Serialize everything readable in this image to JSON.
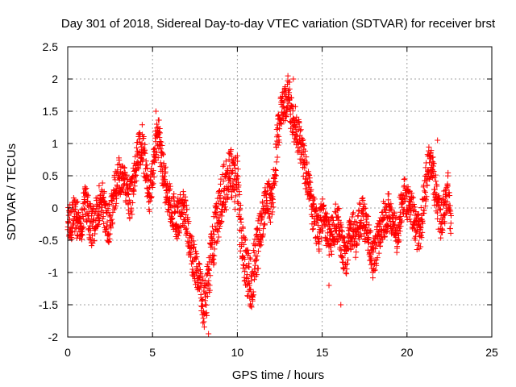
{
  "chart_data": {
    "type": "scatter",
    "title": "Day 301 of 2018, Sidereal Day-to-day VTEC variation (SDTVAR) for receiver brst",
    "xlabel": "GPS time / hours",
    "ylabel": "SDTVAR / TECUs",
    "xlim": [
      0,
      25
    ],
    "ylim": [
      -2,
      2.5
    ],
    "x_ticks": [
      0,
      5,
      10,
      15,
      20,
      25
    ],
    "x_tick_labels": [
      "0",
      "5",
      "10",
      "15",
      "20",
      "25"
    ],
    "y_ticks": [
      -2,
      -1.5,
      -1,
      -0.5,
      0,
      0.5,
      1,
      1.5,
      2,
      2.5
    ],
    "y_tick_labels": [
      "-2",
      "-1.5",
      "-1",
      "-0.5",
      "0",
      "0.5",
      "1",
      "1.5",
      "2",
      "2.5"
    ],
    "grid": true,
    "marker": "+",
    "marker_color": "#ff0000",
    "sample_interval_hours": 0.01,
    "series": [
      {
        "name": "SDTVAR",
        "trend": {
          "x": [
            0.0,
            0.2,
            0.4,
            0.6,
            0.8,
            1.0,
            1.2,
            1.4,
            1.6,
            1.8,
            2.0,
            2.2,
            2.4,
            2.6,
            2.8,
            3.0,
            3.2,
            3.4,
            3.6,
            3.8,
            4.0,
            4.2,
            4.4,
            4.6,
            4.8,
            5.0,
            5.2,
            5.4,
            5.6,
            5.8,
            6.0,
            6.2,
            6.4,
            6.6,
            6.8,
            7.0,
            7.2,
            7.4,
            7.6,
            7.8,
            8.0,
            8.2,
            8.4,
            8.6,
            8.8,
            9.0,
            9.2,
            9.4,
            9.6,
            9.8,
            10.0,
            10.2,
            10.4,
            10.6,
            10.8,
            11.0,
            11.2,
            11.4,
            11.6,
            11.8,
            12.0,
            12.2,
            12.4,
            12.6,
            12.8,
            13.0,
            13.2,
            13.4,
            13.6,
            13.8,
            14.0,
            14.2,
            14.4,
            14.6,
            14.8,
            15.0,
            15.2,
            15.4,
            15.6,
            15.8,
            16.0,
            16.2,
            16.4,
            16.6,
            16.8,
            17.0,
            17.2,
            17.4,
            17.6,
            17.8,
            18.0,
            18.2,
            18.4,
            18.6,
            18.8,
            19.0,
            19.2,
            19.4,
            19.6,
            19.8,
            20.0,
            20.2,
            20.4,
            20.6,
            20.8,
            21.0,
            21.2,
            21.4,
            21.6,
            21.8,
            22.0,
            22.2,
            22.4,
            22.6
          ],
          "y": [
            -0.3,
            -0.2,
            -0.1,
            -0.2,
            -0.3,
            0.1,
            -0.1,
            -0.3,
            -0.2,
            0.0,
            0.2,
            -0.1,
            -0.3,
            0.0,
            0.3,
            0.5,
            0.5,
            0.4,
            0.1,
            0.2,
            0.6,
            0.9,
            1.0,
            0.6,
            0.2,
            0.5,
            1.0,
            1.1,
            0.6,
            0.3,
            0.1,
            0.0,
            -0.2,
            -0.1,
            0.0,
            -0.2,
            -0.6,
            -0.8,
            -1.0,
            -1.1,
            -1.5,
            -1.3,
            -0.9,
            -0.5,
            -0.2,
            0.1,
            0.3,
            0.4,
            0.6,
            0.3,
            0.5,
            -0.4,
            -0.8,
            -1.0,
            -1.2,
            -0.9,
            -0.6,
            -0.3,
            0.0,
            0.2,
            0.0,
            0.5,
            1.2,
            1.5,
            1.6,
            1.8,
            1.4,
            1.3,
            1.1,
            0.9,
            0.6,
            0.3,
            0.0,
            -0.2,
            -0.4,
            -0.1,
            -0.3,
            -0.5,
            -0.4,
            -0.2,
            -0.3,
            -0.6,
            -0.8,
            -0.4,
            -0.3,
            -0.5,
            -0.2,
            -0.1,
            -0.3,
            -0.5,
            -0.8,
            -0.6,
            -0.4,
            -0.2,
            -0.1,
            0.0,
            -0.3,
            -0.4,
            -0.1,
            0.2,
            0.1,
            0.0,
            -0.1,
            -0.4,
            -0.3,
            0.1,
            0.6,
            0.7,
            0.4,
            0.0,
            -0.2,
            0.0,
            0.3,
            -0.2
          ],
          "scatter_half_range": [
            0.3,
            0.3,
            0.3,
            0.3,
            0.3,
            0.3,
            0.3,
            0.3,
            0.3,
            0.3,
            0.3,
            0.3,
            0.3,
            0.3,
            0.3,
            0.3,
            0.3,
            0.3,
            0.3,
            0.3,
            0.3,
            0.3,
            0.3,
            0.3,
            0.3,
            0.3,
            0.3,
            0.3,
            0.3,
            0.3,
            0.3,
            0.3,
            0.3,
            0.3,
            0.3,
            0.3,
            0.3,
            0.3,
            0.3,
            0.3,
            0.4,
            0.4,
            0.4,
            0.4,
            0.4,
            0.4,
            0.4,
            0.4,
            0.4,
            0.4,
            0.4,
            0.4,
            0.4,
            0.4,
            0.4,
            0.4,
            0.4,
            0.3,
            0.3,
            0.3,
            0.3,
            0.3,
            0.3,
            0.3,
            0.3,
            0.3,
            0.3,
            0.3,
            0.3,
            0.3,
            0.3,
            0.3,
            0.3,
            0.3,
            0.3,
            0.3,
            0.3,
            0.3,
            0.3,
            0.3,
            0.3,
            0.3,
            0.3,
            0.3,
            0.3,
            0.3,
            0.3,
            0.3,
            0.3,
            0.3,
            0.3,
            0.3,
            0.3,
            0.3,
            0.3,
            0.3,
            0.3,
            0.3,
            0.3,
            0.3,
            0.3,
            0.3,
            0.3,
            0.3,
            0.3,
            0.3,
            0.3,
            0.3,
            0.3,
            0.3,
            0.3,
            0.3,
            0.3,
            0.3
          ]
        },
        "extremes": [
          {
            "x": 13.3,
            "y": 2.0
          },
          {
            "x": 5.2,
            "y": 1.5
          },
          {
            "x": 8.3,
            "y": -1.95
          },
          {
            "x": 16.1,
            "y": -1.5
          },
          {
            "x": 15.4,
            "y": -1.2
          },
          {
            "x": 21.8,
            "y": 1.05
          }
        ]
      }
    ]
  }
}
